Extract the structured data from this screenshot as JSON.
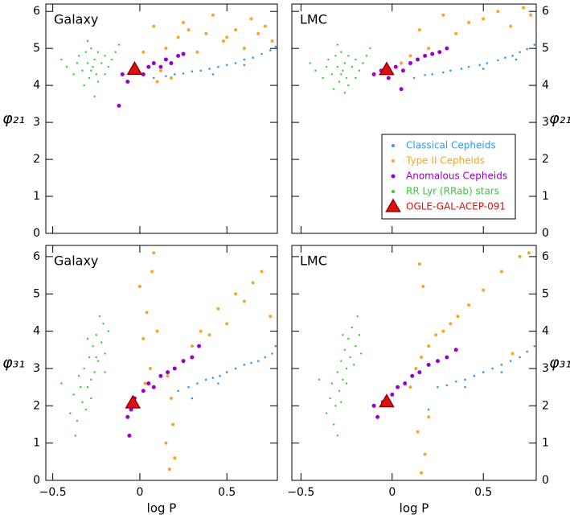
{
  "chart_data": [
    {
      "type": "scatter",
      "panel_label": "Galaxy",
      "ylabel": "φ₂₁",
      "ytick_side": "left",
      "show_xtick_labels": false,
      "xlim": [
        -0.54,
        0.79
      ],
      "ylim": [
        0,
        6.2
      ],
      "xticks": [
        {
          "value": -0.5,
          "label": "−0.5"
        },
        0,
        0.5
      ],
      "yticks": [
        0,
        1,
        2,
        3,
        4,
        5,
        6
      ],
      "series": [
        {
          "color": "#3399ee",
          "size": 1.3,
          "x": [
            0.08,
            0.15,
            0.2,
            0.25,
            0.3,
            0.35,
            0.4,
            0.45,
            0.5,
            0.55,
            0.6,
            0.65,
            0.7,
            0.75,
            0.78,
            0.42,
            0.6
          ],
          "y": [
            4.2,
            4.25,
            4.3,
            4.32,
            4.38,
            4.4,
            4.45,
            4.5,
            4.55,
            4.6,
            4.7,
            4.75,
            4.85,
            4.95,
            5.05,
            4.3,
            4.55
          ]
        },
        {
          "color": "#f5a623",
          "size": 2,
          "x": [
            0.02,
            0.08,
            0.12,
            0.18,
            0.22,
            0.28,
            0.33,
            0.38,
            0.42,
            0.48,
            0.55,
            0.6,
            0.68,
            0.72,
            0.76,
            0.15,
            0.25,
            0.1,
            0.5,
            0.64
          ],
          "y": [
            4.9,
            5.6,
            4.4,
            4.2,
            5.3,
            5.5,
            4.9,
            5.4,
            5.9,
            5.2,
            5.5,
            5.0,
            5.4,
            5.6,
            5.2,
            5.0,
            5.7,
            4.1,
            5.3,
            5.8
          ]
        },
        {
          "color": "#9900cc",
          "size": 2.5,
          "x": [
            -0.1,
            -0.07,
            -0.02,
            0.02,
            0.05,
            0.08,
            0.12,
            0.15,
            0.18,
            0.22,
            0.25,
            -0.12
          ],
          "y": [
            4.3,
            4.1,
            4.4,
            4.3,
            4.5,
            4.6,
            4.5,
            4.7,
            4.6,
            4.8,
            4.85,
            3.45
          ]
        },
        {
          "color": "#33cc33",
          "size": 1.2,
          "x": [
            -0.42,
            -0.38,
            -0.35,
            -0.33,
            -0.31,
            -0.3,
            -0.29,
            -0.28,
            -0.27,
            -0.26,
            -0.25,
            -0.24,
            -0.22,
            -0.2,
            -0.18,
            -0.16,
            -0.14,
            -0.12,
            -0.36,
            -0.32,
            -0.28,
            -0.24,
            -0.2,
            -0.3,
            -0.45,
            -0.26
          ],
          "y": [
            4.5,
            4.3,
            4.8,
            4.4,
            4.9,
            4.6,
            4.2,
            5.0,
            4.5,
            4.7,
            4.3,
            4.9,
            4.6,
            4.8,
            4.5,
            4.7,
            4.9,
            5.1,
            4.6,
            4.0,
            4.4,
            4.1,
            4.3,
            5.2,
            4.7,
            3.7
          ]
        },
        {
          "color": "#dd1111",
          "marker": "triangle",
          "size": 9,
          "x": [
            -0.03
          ],
          "y": [
            4.43
          ]
        }
      ]
    },
    {
      "type": "scatter",
      "panel_label": "LMC",
      "ylabel": "φ₂₁",
      "ytick_side": "right",
      "show_xtick_labels": false,
      "legend": "lower right",
      "xlim": [
        -0.55,
        0.79
      ],
      "ylim": [
        0,
        6.2
      ],
      "xticks": [
        {
          "value": -0.5,
          "label": "−0.5"
        },
        0,
        0.5
      ],
      "yticks": [
        0,
        1,
        2,
        3,
        4,
        5,
        6
      ],
      "series": [
        {
          "name": "Classical Cepheids",
          "color": "#3399ee",
          "size": 1.3,
          "x": [
            0.12,
            0.18,
            0.22,
            0.28,
            0.32,
            0.38,
            0.42,
            0.48,
            0.52,
            0.58,
            0.62,
            0.66,
            0.7,
            0.74,
            0.78,
            0.5,
            0.68
          ],
          "y": [
            4.2,
            4.28,
            4.3,
            4.35,
            4.4,
            4.45,
            4.5,
            4.55,
            4.6,
            4.68,
            4.75,
            4.8,
            4.9,
            4.98,
            5.1,
            4.45,
            4.7
          ]
        },
        {
          "name": "Type II Cepheids",
          "color": "#f5a623",
          "size": 2,
          "x": [
            0.05,
            0.1,
            0.15,
            0.2,
            0.28,
            0.35,
            0.42,
            0.5,
            0.58,
            0.65,
            0.72,
            0.76
          ],
          "y": [
            4.6,
            4.8,
            5.5,
            5.0,
            5.9,
            5.4,
            5.7,
            5.8,
            6.0,
            5.6,
            6.1,
            5.9
          ]
        },
        {
          "name": "Anomalous Cepheids",
          "color": "#9900cc",
          "size": 2.5,
          "x": [
            -0.1,
            -0.06,
            -0.02,
            0.02,
            0.06,
            0.1,
            0.14,
            0.18,
            0.22,
            0.26,
            0.3,
            0.05
          ],
          "y": [
            4.3,
            4.4,
            4.2,
            4.5,
            4.4,
            4.6,
            4.7,
            4.8,
            4.85,
            4.9,
            5.0,
            3.9
          ]
        },
        {
          "name": "RR Lyr (RRab) stars",
          "color": "#33cc33",
          "size": 1.2,
          "x": [
            -0.42,
            -0.38,
            -0.35,
            -0.33,
            -0.31,
            -0.3,
            -0.29,
            -0.28,
            -0.27,
            -0.26,
            -0.25,
            -0.24,
            -0.22,
            -0.2,
            -0.18,
            -0.16,
            -0.14,
            -0.12,
            -0.36,
            -0.32,
            -0.28,
            -0.24,
            -0.2,
            -0.3,
            -0.45,
            -0.26
          ],
          "y": [
            4.4,
            4.2,
            4.7,
            4.3,
            4.8,
            4.5,
            4.1,
            4.9,
            4.4,
            4.6,
            4.2,
            4.8,
            4.5,
            4.7,
            4.4,
            4.6,
            4.8,
            5.0,
            4.5,
            3.9,
            4.3,
            4.0,
            4.2,
            5.1,
            4.6,
            3.8
          ]
        },
        {
          "name": "OGLE-GAL-ACEP-091",
          "color": "#dd1111",
          "marker": "triangle",
          "size": 9,
          "x": [
            -0.03
          ],
          "y": [
            4.42
          ]
        }
      ]
    },
    {
      "type": "scatter",
      "panel_label": "Galaxy",
      "ylabel": "φ₃₁",
      "xlabel": "log P",
      "ytick_side": "left",
      "show_xtick_labels": true,
      "xlim": [
        -0.54,
        0.79
      ],
      "ylim": [
        0,
        6.3
      ],
      "xticks": [
        {
          "value": -0.5,
          "label": "−0.5"
        },
        0,
        0.5
      ],
      "yticks": [
        0,
        1,
        2,
        3,
        4,
        5,
        6
      ],
      "series": [
        {
          "color": "#3399ee",
          "size": 1.3,
          "x": [
            0.22,
            0.28,
            0.33,
            0.38,
            0.42,
            0.46,
            0.5,
            0.55,
            0.6,
            0.64,
            0.68,
            0.72,
            0.76,
            0.78,
            0.45,
            0.3
          ],
          "y": [
            2.4,
            2.5,
            2.6,
            2.7,
            2.75,
            2.8,
            2.9,
            3.0,
            3.1,
            3.15,
            3.2,
            3.3,
            3.4,
            3.6,
            2.6,
            2.2
          ]
        },
        {
          "color": "#f5a623",
          "size": 2,
          "x": [
            0.0,
            0.02,
            0.04,
            0.06,
            0.08,
            0.1,
            0.03,
            0.07,
            0.15,
            0.17,
            0.18,
            0.19,
            0.2,
            0.16,
            0.3,
            0.35,
            0.4,
            0.45,
            0.5,
            0.55,
            0.6,
            0.65,
            0.7,
            0.75
          ],
          "y": [
            5.2,
            3.8,
            4.5,
            3.0,
            6.1,
            4.0,
            2.6,
            5.6,
            1.0,
            0.3,
            2.2,
            1.5,
            0.6,
            2.8,
            3.6,
            4.0,
            3.9,
            4.6,
            4.2,
            5.0,
            4.8,
            5.3,
            5.6,
            4.4
          ]
        },
        {
          "color": "#9900cc",
          "size": 2.5,
          "x": [
            -0.07,
            -0.05,
            -0.03,
            0.02,
            0.05,
            0.08,
            0.12,
            0.16,
            0.2,
            0.25,
            0.3,
            0.34,
            -0.06
          ],
          "y": [
            1.7,
            1.9,
            2.2,
            2.4,
            2.6,
            2.5,
            2.8,
            2.9,
            3.0,
            3.2,
            3.3,
            3.6,
            1.2
          ]
        },
        {
          "color": "#33cc33",
          "size": 1.2,
          "x": [
            -0.4,
            -0.38,
            -0.36,
            -0.35,
            -0.33,
            -0.32,
            -0.3,
            -0.29,
            -0.28,
            -0.27,
            -0.26,
            -0.25,
            -0.24,
            -0.22,
            -0.21,
            -0.2,
            -0.18,
            -0.34,
            -0.31,
            -0.28,
            -0.25,
            -0.23,
            -0.45,
            -0.3,
            -0.2,
            -0.37
          ],
          "y": [
            1.8,
            2.3,
            1.6,
            2.8,
            2.1,
            3.0,
            2.5,
            3.3,
            2.2,
            3.6,
            2.9,
            3.9,
            3.2,
            3.7,
            4.2,
            3.4,
            4.0,
            2.5,
            1.9,
            2.7,
            3.3,
            4.4,
            2.6,
            3.8,
            2.9,
            1.2
          ]
        },
        {
          "color": "#dd1111",
          "marker": "triangle",
          "size": 9,
          "x": [
            -0.04
          ],
          "y": [
            2.07
          ]
        }
      ]
    },
    {
      "type": "scatter",
      "panel_label": "LMC",
      "ylabel": "φ₃₁",
      "xlabel": "log P",
      "ytick_side": "right",
      "show_xtick_labels": true,
      "xlim": [
        -0.55,
        0.79
      ],
      "ylim": [
        0,
        6.3
      ],
      "xticks": [
        {
          "value": -0.5,
          "label": "−0.5"
        },
        0,
        0.5
      ],
      "yticks": [
        0,
        1,
        2,
        3,
        4,
        5,
        6
      ],
      "series": [
        {
          "color": "#3399ee",
          "size": 1.3,
          "x": [
            0.25,
            0.3,
            0.35,
            0.4,
            0.45,
            0.5,
            0.55,
            0.6,
            0.65,
            0.7,
            0.74,
            0.78,
            0.4,
            0.6,
            0.2
          ],
          "y": [
            2.5,
            2.55,
            2.65,
            2.7,
            2.8,
            2.9,
            3.0,
            3.1,
            3.2,
            3.3,
            3.45,
            3.6,
            2.5,
            2.9,
            1.9
          ]
        },
        {
          "color": "#f5a623",
          "size": 2,
          "x": [
            0.1,
            0.13,
            0.16,
            0.2,
            0.24,
            0.28,
            0.32,
            0.36,
            0.42,
            0.5,
            0.6,
            0.7,
            0.75,
            0.15,
            0.17,
            0.16,
            0.18,
            0.14,
            0.2,
            0.66
          ],
          "y": [
            2.5,
            3.0,
            3.3,
            3.6,
            3.9,
            4.0,
            4.2,
            4.4,
            4.7,
            5.1,
            5.6,
            6.0,
            6.1,
            5.8,
            5.2,
            0.2,
            0.7,
            1.3,
            1.7,
            3.4
          ]
        },
        {
          "color": "#9900cc",
          "size": 2.5,
          "x": [
            -0.1,
            -0.05,
            0.0,
            0.03,
            0.07,
            0.11,
            0.15,
            0.2,
            0.25,
            0.3,
            0.35,
            -0.08
          ],
          "y": [
            2.0,
            2.1,
            2.3,
            2.5,
            2.6,
            2.8,
            2.9,
            3.1,
            3.2,
            3.3,
            3.5,
            1.7
          ]
        },
        {
          "color": "#33cc33",
          "size": 1.2,
          "x": [
            -0.36,
            -0.34,
            -0.33,
            -0.31,
            -0.3,
            -0.29,
            -0.28,
            -0.27,
            -0.26,
            -0.25,
            -0.24,
            -0.23,
            -0.22,
            -0.2,
            -0.19,
            -0.18,
            -0.32,
            -0.28,
            -0.25,
            -0.21,
            -0.4,
            -0.27,
            -0.17,
            -0.3
          ],
          "y": [
            1.8,
            2.2,
            2.6,
            2.0,
            2.9,
            2.4,
            3.2,
            2.7,
            3.5,
            3.0,
            3.8,
            3.3,
            4.1,
            3.6,
            4.4,
            3.9,
            1.5,
            2.1,
            2.6,
            3.1,
            2.7,
            3.9,
            3.4,
            1.2
          ]
        },
        {
          "color": "#dd1111",
          "marker": "triangle",
          "size": 9,
          "x": [
            -0.03
          ],
          "y": [
            2.1
          ]
        }
      ]
    }
  ]
}
